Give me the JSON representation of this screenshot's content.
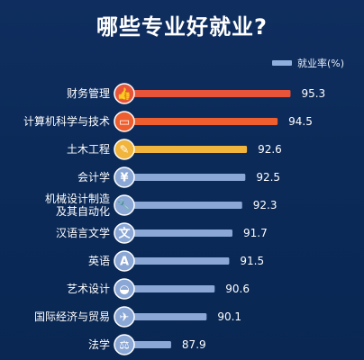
{
  "title": "哪些专业好就业?",
  "chart_data": {
    "type": "bar",
    "orientation": "horizontal",
    "categories": [
      "财务管理",
      "计算机科学与技术",
      "土木工程",
      "会计学",
      "机械设计制造及其自动化",
      "汉语言文学",
      "英语",
      "艺术设计",
      "国际经济与贸易",
      "法学"
    ],
    "category_lines": [
      [
        "财务管理"
      ],
      [
        "计算机科学与技术"
      ],
      [
        "土木工程"
      ],
      [
        "会计学"
      ],
      [
        "机械设计制造",
        "及其自动化"
      ],
      [
        "汉语言文学"
      ],
      [
        "英语"
      ],
      [
        "艺术设计"
      ],
      [
        "国际经济与贸易"
      ],
      [
        "法学"
      ]
    ],
    "series": [
      {
        "name": "就业率(%)",
        "values": [
          95.3,
          94.5,
          92.6,
          92.5,
          92.3,
          91.7,
          91.5,
          90.6,
          90.1,
          87.9
        ]
      }
    ],
    "value_labels": [
      "95.3",
      "94.5",
      "92.6",
      "92.5",
      "92.3",
      "91.7",
      "91.5",
      "90.6",
      "90.1",
      "87.9"
    ],
    "bar_colors": [
      "#e8543a",
      "#ee5e2f",
      "#f1b43c",
      "#8aa7d6",
      "#8aa7d6",
      "#8aa7d6",
      "#8aa7d6",
      "#8aa7d6",
      "#8aa7d6",
      "#8aa7d6"
    ],
    "icons": [
      "thumbs-up-icon",
      "monitor-icon",
      "pencil-icon",
      "yen-icon",
      "wrench-icon",
      "text-icon",
      "letter-a-icon",
      "palette-icon",
      "airplane-icon",
      "scales-icon"
    ],
    "icon_glyphs": [
      "👍",
      "▭",
      "✎",
      "¥",
      "🔧",
      "文",
      "A",
      "◒",
      "✈",
      "⚖"
    ],
    "xlim": [
      85,
      96
    ],
    "grid": false,
    "legend_position": "top-right"
  },
  "legend": {
    "label": "就业率(%)",
    "color": "#8fb0df"
  }
}
